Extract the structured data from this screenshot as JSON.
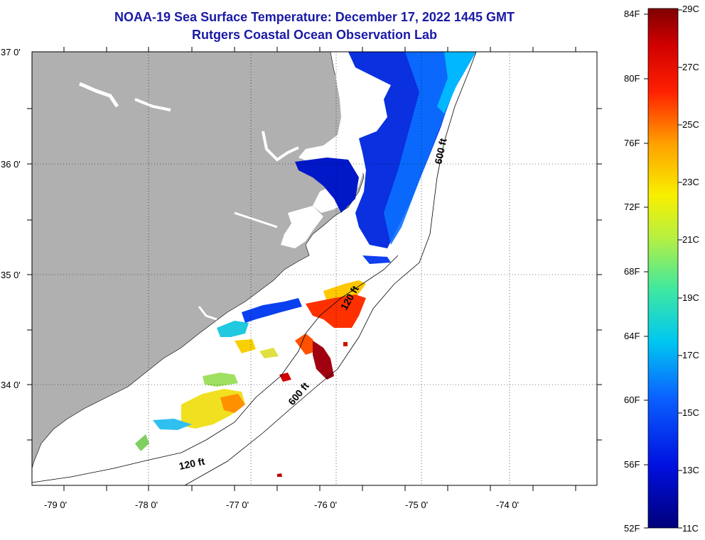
{
  "title_line1": "NOAA-19 Sea Surface Temperature:  December 17, 2022 1445 GMT",
  "title_line2": "Rutgers Coastal Ocean Observation Lab",
  "lat_labels": [
    "37 0'",
    "36 0'",
    "35 0'",
    "34 0'"
  ],
  "lon_labels": [
    "-79 0'",
    "-78 0'",
    "-77 0'",
    "-76 0'",
    "-75 0'",
    "-74 0'"
  ],
  "contours": {
    "c120_upper": "120 ft",
    "c120_lower": "120 ft",
    "c600_upper": "600 ft",
    "c600_lower": "600 ft"
  },
  "colorbar": {
    "fahrenheit": [
      "84F",
      "80F",
      "76F",
      "72F",
      "68F",
      "64F",
      "60F",
      "56F",
      "52F"
    ],
    "celsius": [
      "29C",
      "27C",
      "25C",
      "23C",
      "21C",
      "19C",
      "17C",
      "15C",
      "13C",
      "11C"
    ]
  },
  "colors": {
    "land": "#b0b0b0",
    "ocean_nodata": "#ffffff",
    "title": "#1a1aa6"
  }
}
